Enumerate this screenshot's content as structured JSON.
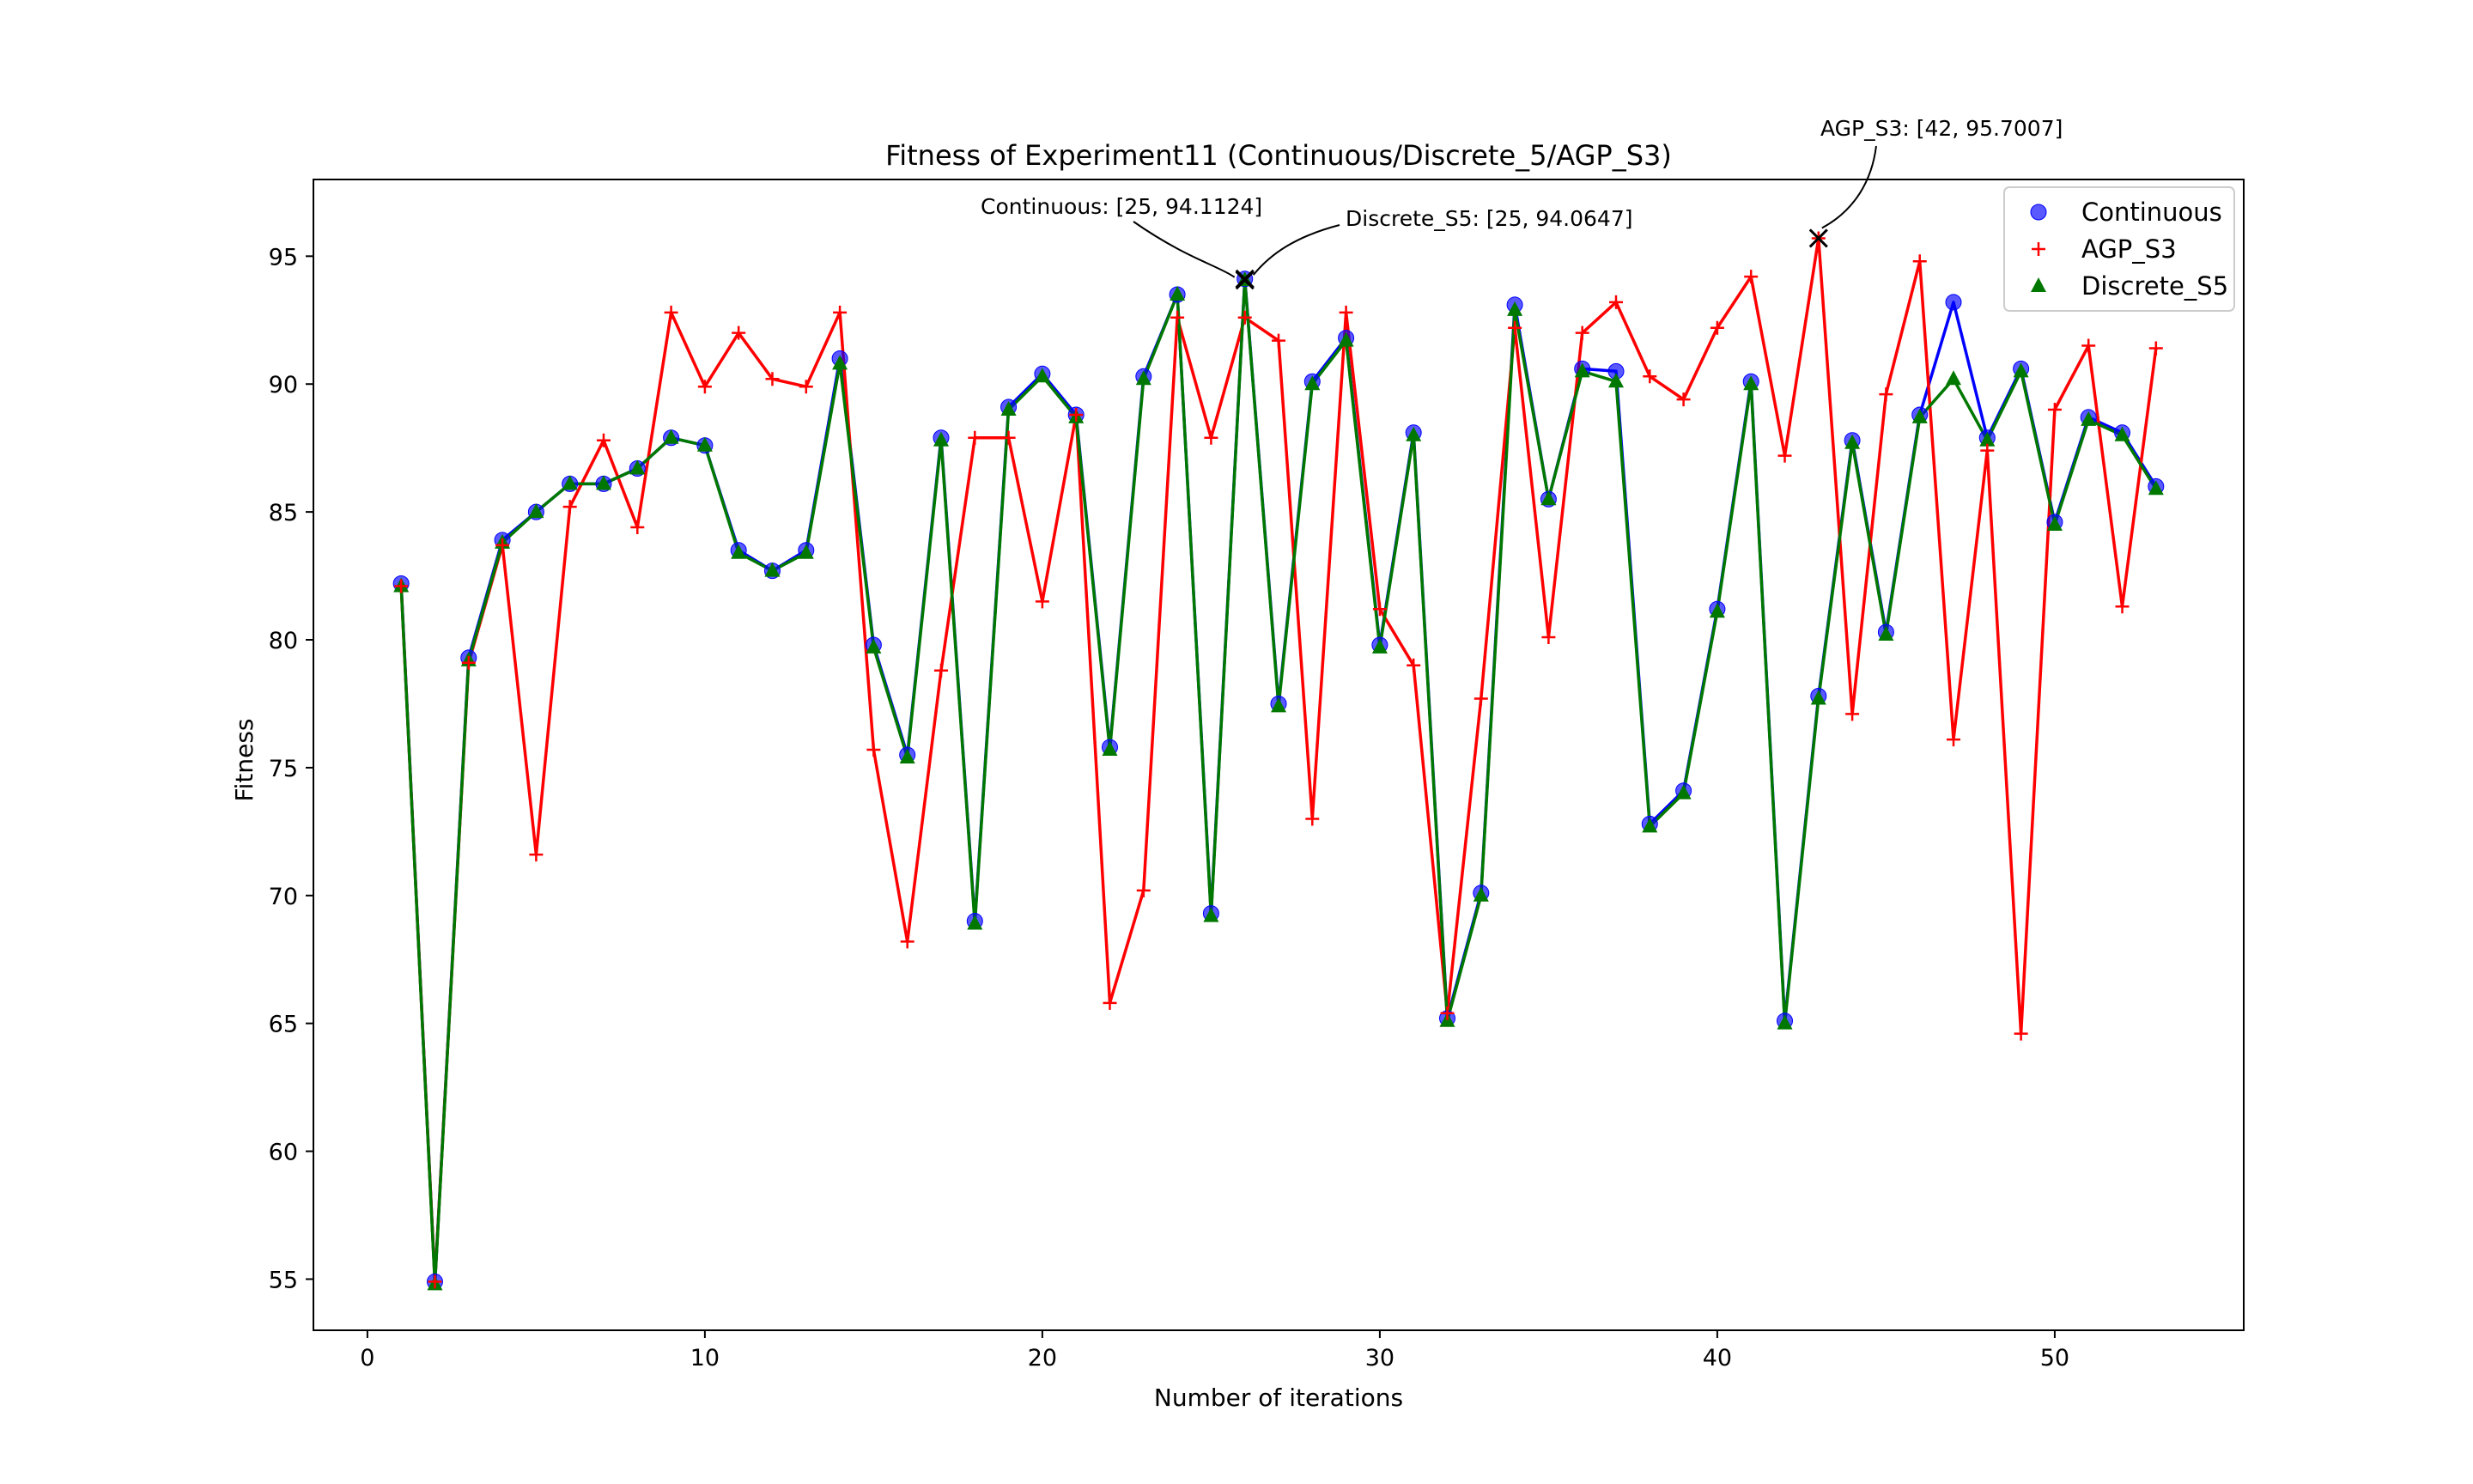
{
  "chart_data": {
    "type": "line",
    "title": "Fitness of Experiment11 (Continuous/Discrete_5/AGP_S3)",
    "xlabel": "Number of iterations",
    "ylabel": "Fitness",
    "xlim": [
      -1.6,
      55.6
    ],
    "ylim": [
      53.0,
      98.0
    ],
    "xticks": [
      0,
      10,
      20,
      30,
      40,
      50
    ],
    "yticks": [
      55,
      60,
      65,
      70,
      75,
      80,
      85,
      90,
      95
    ],
    "grid": false,
    "legend_position": "upper-right",
    "x": [
      1,
      2,
      3,
      4,
      5,
      6,
      7,
      8,
      9,
      10,
      11,
      12,
      13,
      14,
      15,
      16,
      17,
      18,
      19,
      20,
      21,
      22,
      23,
      24,
      25,
      26,
      27,
      28,
      29,
      30,
      31,
      32,
      33,
      34,
      35,
      36,
      37,
      38,
      39,
      40,
      41,
      42,
      43,
      44,
      45,
      46,
      47,
      48,
      49,
      50,
      51,
      52,
      53
    ],
    "series": [
      {
        "name": "Continuous",
        "color": "#0000ff",
        "marker": "circle",
        "values": [
          82.2,
          54.9,
          79.3,
          83.9,
          85.0,
          86.1,
          86.1,
          86.7,
          87.9,
          87.6,
          83.5,
          82.7,
          83.5,
          91.0,
          79.8,
          75.5,
          87.9,
          69.0,
          89.1,
          90.4,
          88.8,
          75.8,
          90.3,
          93.5,
          69.3,
          94.1124,
          77.5,
          90.1,
          91.8,
          79.8,
          88.1,
          65.2,
          70.1,
          93.1,
          85.5,
          90.6,
          90.5,
          72.8,
          74.1,
          81.2,
          90.1,
          65.1,
          77.8,
          87.8,
          80.3,
          88.8,
          93.2,
          87.9,
          90.6,
          84.6,
          88.7,
          88.1,
          86.0
        ]
      },
      {
        "name": "AGP_S3",
        "color": "#ff0000",
        "marker": "plus",
        "values": [
          82.1,
          54.9,
          79.1,
          83.7,
          71.6,
          85.2,
          87.8,
          84.4,
          92.8,
          89.9,
          92.0,
          90.2,
          89.9,
          92.8,
          75.7,
          68.2,
          78.8,
          87.9,
          87.9,
          81.5,
          88.8,
          65.8,
          70.2,
          92.6,
          87.9,
          92.6,
          91.7,
          73.0,
          92.8,
          81.2,
          79.0,
          65.4,
          77.7,
          92.2,
          80.1,
          92.0,
          93.2,
          90.3,
          89.4,
          92.2,
          94.2,
          87.2,
          95.7007,
          77.1,
          89.6,
          94.8,
          76.1,
          87.4,
          64.6,
          89.0,
          91.5,
          81.3,
          91.4
        ]
      },
      {
        "name": "Discrete_S5",
        "color": "#007800",
        "marker": "triangle",
        "values": [
          82.1,
          54.8,
          79.2,
          83.8,
          85.0,
          86.1,
          86.1,
          86.7,
          87.9,
          87.6,
          83.4,
          82.7,
          83.4,
          90.8,
          79.7,
          75.4,
          87.8,
          68.9,
          89.0,
          90.3,
          88.7,
          75.7,
          90.2,
          93.5,
          69.2,
          94.0647,
          77.4,
          90.0,
          91.7,
          79.7,
          88.0,
          65.1,
          70.0,
          92.9,
          85.5,
          90.5,
          90.1,
          72.7,
          74.0,
          81.1,
          90.0,
          65.0,
          77.7,
          87.7,
          80.2,
          88.7,
          90.2,
          87.8,
          90.5,
          84.5,
          88.6,
          88.0,
          85.9
        ]
      }
    ],
    "annotations": [
      {
        "text": "Continuous: [25, 94.1124]",
        "point": [
          26,
          94.1124
        ]
      },
      {
        "text": "Discrete_S5: [25, 94.0647]",
        "point": [
          26,
          94.0647
        ]
      },
      {
        "text": "AGP_S3: [42, 95.7007]",
        "point": [
          43,
          95.7007
        ]
      }
    ]
  }
}
